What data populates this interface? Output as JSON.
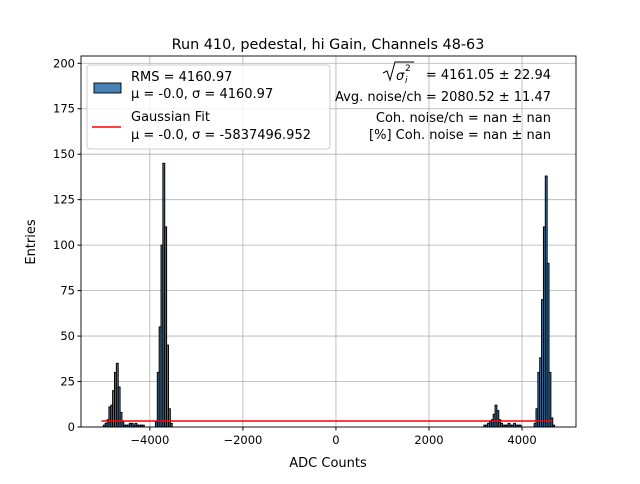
{
  "chart_data": {
    "type": "bar",
    "title": "Run 410, pedestal, hi Gain, Channels 48-63",
    "xlabel": "ADC Counts",
    "ylabel": "Entries",
    "xlim": [
      -5480,
      5160
    ],
    "ylim": [
      0,
      204
    ],
    "grid": true,
    "legend_placement": "top-left",
    "x_ticks": [
      -4000,
      -2000,
      0,
      2000,
      4000
    ],
    "x_tick_labels": [
      "−4000",
      "−2000",
      "0",
      "2000",
      "4000"
    ],
    "y_ticks": [
      0,
      25,
      50,
      75,
      100,
      125,
      150,
      175,
      200
    ],
    "y_tick_labels": [
      "0",
      "25",
      "50",
      "75",
      "100",
      "125",
      "150",
      "175",
      "200"
    ],
    "histogram": {
      "bin_width": 40,
      "bin_centers": [
        -4980,
        -4940,
        -4900,
        -4860,
        -4820,
        -4780,
        -4740,
        -4700,
        -4660,
        -4620,
        -4580,
        -4540,
        -4500,
        -4460,
        -4420,
        -4380,
        -4340,
        -4300,
        -4260,
        -4220,
        -4180,
        -4140,
        -3860,
        -3820,
        -3780,
        -3740,
        -3700,
        -3660,
        -3620,
        -3580,
        -3540,
        3200,
        3240,
        3280,
        3320,
        3360,
        3400,
        3440,
        3480,
        3520,
        3560,
        3600,
        3640,
        3680,
        3720,
        3760,
        3800,
        3840,
        3880,
        3920,
        3960,
        4280,
        4320,
        4360,
        4400,
        4440,
        4480,
        4520,
        4560,
        4600,
        4640,
        4680
      ],
      "counts": [
        1,
        2,
        4,
        11,
        12,
        20,
        30,
        35,
        22,
        8,
        3,
        1,
        1,
        1,
        2,
        2,
        1,
        2,
        1,
        1,
        1,
        1,
        3,
        30,
        55,
        100,
        145,
        110,
        45,
        10,
        2,
        1,
        1,
        2,
        3,
        4,
        7,
        12,
        9,
        4,
        2,
        1,
        1,
        1,
        2,
        1,
        1,
        2,
        1,
        1,
        1,
        2,
        10,
        30,
        38,
        70,
        110,
        138,
        90,
        30,
        5,
        1
      ],
      "color": "#4682b4"
    },
    "fit_line": {
      "x": [
        -5040,
        4640
      ],
      "y": [
        3.3,
        3.3
      ],
      "color": "#ff0000"
    },
    "legend": [
      {
        "label": "RMS = 4160.97",
        "sublabel": "μ = -0.0, σ = 4160.97",
        "color": "#4682b4"
      },
      {
        "label": "Gaussian Fit",
        "sublabel": "μ = -0.0, σ = -5837496.952",
        "color": "#ff0000"
      }
    ],
    "annotations": [
      "= 4161.05 ± 22.94",
      "Avg. noise/ch = 2080.52 ± 11.47",
      "Coh. noise/ch = nan ± nan",
      "[%] Coh. noise = nan ± nan"
    ],
    "annotation_symbol": "σ",
    "annotation_subscript": "i",
    "annotation_superscript": "2"
  }
}
